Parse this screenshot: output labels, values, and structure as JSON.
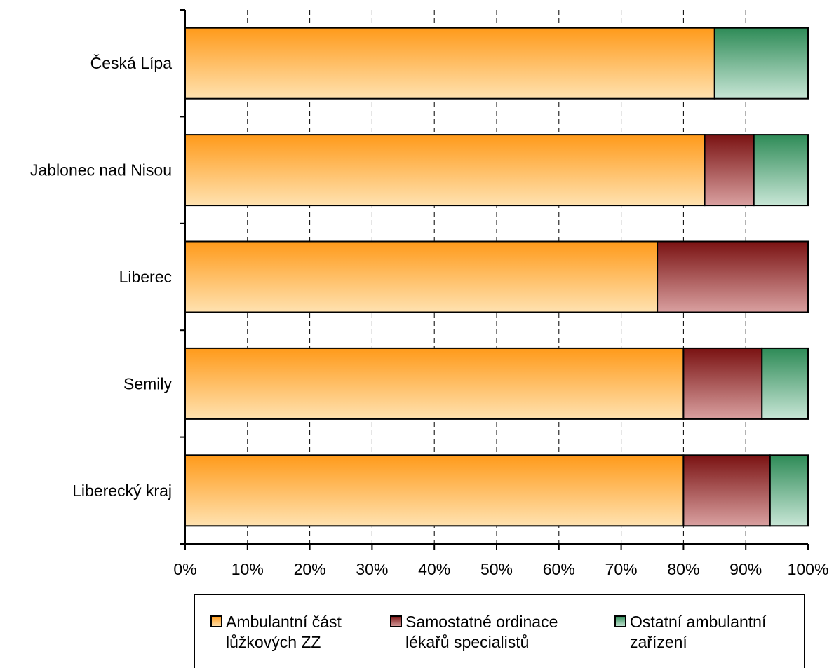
{
  "chart_data": {
    "type": "bar",
    "orientation": "horizontal",
    "stacked": "percent",
    "categories": [
      "Česká Lípa",
      "Jablonec nad Nisou",
      "Liberec",
      "Semily",
      "Liberecký kraj"
    ],
    "series": [
      {
        "name": "Ambulantní část lůžkových ZZ",
        "values": [
          85,
          83.4,
          75.8,
          80,
          80
        ],
        "color": "#FF9F1C"
      },
      {
        "name": "Samostatné ordinace lékařů specialistů",
        "values": [
          0,
          7.9,
          24.2,
          12.6,
          13.9
        ],
        "color": "#7A1515"
      },
      {
        "name": "Ostatní ambulantní zařízení",
        "values": [
          15,
          8.7,
          0,
          7.4,
          6.1
        ],
        "color": "#2E8B57"
      }
    ],
    "xlim": [
      0,
      100
    ],
    "x_ticks": [
      "0%",
      "10%",
      "20%",
      "30%",
      "40%",
      "50%",
      "60%",
      "70%",
      "80%",
      "90%",
      "100%"
    ],
    "grid": "vertical dashed",
    "legend_placement": "bottom",
    "legend": [
      {
        "lines": [
          "Ambulantní část",
          "lůžkových ZZ"
        ]
      },
      {
        "lines": [
          "Samostatné ordinace",
          "lékařů specialistů"
        ]
      },
      {
        "lines": [
          "Ostatní ambulantní",
          "zařízení"
        ]
      }
    ]
  }
}
